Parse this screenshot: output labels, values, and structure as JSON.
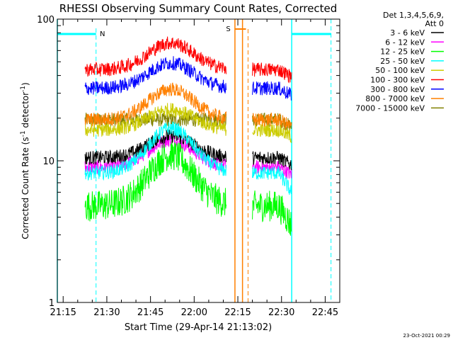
{
  "chart_data": {
    "type": "line",
    "title": "RHESSI Observing Summary Count Rates, Corrected",
    "xlabel": "Start Time (29-Apr-14 21:13:02)",
    "ylabel_main": "Corrected Count Rate (s",
    "ylabel_sup": "-1",
    "ylabel_mid": " detector",
    "ylabel_end": ")",
    "y_scale": "log",
    "ylim": [
      1,
      100
    ],
    "xlim_minutes": [
      0,
      97
    ],
    "x_ticks": [
      "21:15",
      "21:30",
      "21:45",
      "22:00",
      "22:15",
      "22:30",
      "22:45"
    ],
    "y_ticks": [
      "1",
      "10",
      "100"
    ],
    "legend_header": [
      "Det 1,3,4,5,6,9,",
      "Att 0"
    ],
    "legend_position": "right",
    "series": [
      {
        "name": "3 - 6 keV",
        "color": "#000000",
        "base": 10.5,
        "peak": 15
      },
      {
        "name": "6 - 12 keV",
        "color": "#ff00ff",
        "base": 9.0,
        "peak": 14
      },
      {
        "name": "12 - 25 keV",
        "color": "#00ff00",
        "base": 4.8,
        "peak": 11
      },
      {
        "name": "25 - 50 keV",
        "color": "#00ffff",
        "base": 8.2,
        "peak": 17
      },
      {
        "name": "50 - 100 keV",
        "color": "#cccc00",
        "base": 16.5,
        "peak": 23
      },
      {
        "name": "100 - 300 keV",
        "color": "#ff0000",
        "base": 44,
        "peak": 68
      },
      {
        "name": "300 - 800 keV",
        "color": "#0000ff",
        "base": 32.5,
        "peak": 49
      },
      {
        "name": "800 - 7000 keV",
        "color": "#ff8000",
        "base": 19.5,
        "peak": 32
      },
      {
        "name": "7000 - 15000 keV",
        "color": "#808000",
        "base": 19.5,
        "peak": 19.5
      }
    ],
    "data_segments_minutes": [
      [
        9.5,
        58
      ],
      [
        67,
        80.5
      ]
    ],
    "flags": [
      {
        "label": "N",
        "color": "#00ffff"
      },
      {
        "label": "S",
        "color": "#ff8000"
      }
    ],
    "timestamp": "23-Oct-2021 00:29"
  }
}
